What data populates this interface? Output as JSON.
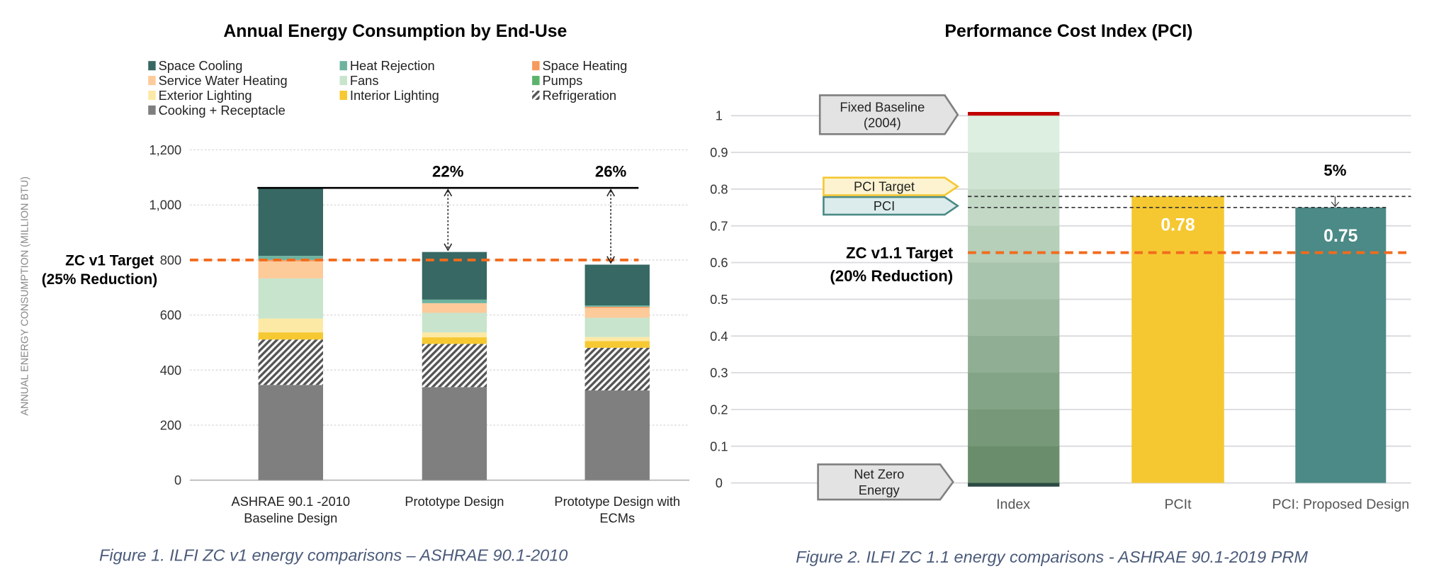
{
  "chart_data": [
    {
      "type": "bar",
      "stacked": true,
      "title": "Annual Energy Consumption by End-Use",
      "ylabel": "ANNUAL ENERGY CONSUMPTION (MILLION BTU)",
      "ylim": [
        0,
        1200
      ],
      "yticks": [
        "0",
        "200",
        "400",
        "600",
        "800",
        "1,000",
        "1,200"
      ],
      "grid": true,
      "legend_placement": "top",
      "categories": [
        [
          "ASHRAE 90.1 -2010",
          "Baseline Design"
        ],
        [
          "Prototype Design"
        ],
        [
          "Prototype Design with",
          "ECMs"
        ]
      ],
      "series": [
        {
          "name": "Cooking + Receptacle",
          "color": "#7f7f7f",
          "values": [
            346,
            338,
            326
          ]
        },
        {
          "name": "Refrigeration",
          "color": "hatch",
          "values": [
            165,
            157,
            155
          ]
        },
        {
          "name": "Interior Lighting",
          "color": "#f6c932",
          "values": [
            26,
            24,
            24
          ]
        },
        {
          "name": "Exterior Lighting",
          "color": "#fde9a6",
          "values": [
            50,
            18,
            15
          ]
        },
        {
          "name": "Fans",
          "color": "#c8e4cc",
          "values": [
            146,
            71,
            70
          ]
        },
        {
          "name": "Service Water Heating",
          "color": "#fdca9a",
          "values": [
            62,
            35,
            36
          ]
        },
        {
          "name": "Space Heating",
          "color": "#f79a5e",
          "values": [
            5,
            0,
            4
          ]
        },
        {
          "name": "Pumps",
          "color": "#5bb36b",
          "values": [
            0,
            0,
            0
          ]
        },
        {
          "name": "Heat Rejection",
          "color": "#6db3a0",
          "values": [
            15,
            13,
            5
          ]
        },
        {
          "name": "Space Cooling",
          "color": "#376863",
          "values": [
            247,
            173,
            148
          ]
        }
      ],
      "legend_order": [
        "Space Cooling",
        "Heat Rejection",
        "Space Heating",
        "Service Water Heating",
        "Fans",
        "Pumps",
        "Exterior Lighting",
        "Interior Lighting",
        "Refrigeration",
        "Cooking + Receptacle"
      ],
      "baseline_total": 1062,
      "target": {
        "value": 800,
        "label": [
          "ZC v1 Target",
          "(25% Reduction)"
        ],
        "color": "#f26b1d"
      },
      "annotations": [
        {
          "category": 1,
          "text": "22%"
        },
        {
          "category": 2,
          "text": "26%"
        }
      ],
      "caption": "Figure 1. ILFI ZC v1 energy comparisons – ASHRAE 90.1-2010"
    },
    {
      "type": "bar",
      "title": "Performance Cost Index (PCI)",
      "ylim": [
        0,
        1
      ],
      "yticks": [
        "0",
        "0.1",
        "0.2",
        "0.3",
        "0.4",
        "0.5",
        "0.6",
        "0.7",
        "0.8",
        "0.9",
        "1"
      ],
      "grid": true,
      "categories": [
        "Index",
        "PCIt",
        "PCI: Proposed Design"
      ],
      "values": [
        1,
        0.78,
        0.75
      ],
      "data_labels": [
        "",
        "0.78",
        "0.75"
      ],
      "colors": {
        "index_top": "#dcefe0",
        "index_bottom": "#6a8e6c",
        "index_cap": "#c00000",
        "index_base": "#2c4a44",
        "pcit": "#f5c832",
        "proposed": "#4b8a86"
      },
      "target": {
        "value": 0.627,
        "label": [
          "ZC v1.1 Target",
          "(20% Reduction)"
        ],
        "color": "#f26b1d"
      },
      "callouts": [
        {
          "lines": [
            "Fixed Baseline",
            "(2004)"
          ],
          "value": 1,
          "fill": "#e3e3e3",
          "stroke": "#7f7f7f"
        },
        {
          "lines": [
            "PCI Target"
          ],
          "value": 0.78,
          "fill": "#fdf3d0",
          "stroke": "#f5c832"
        },
        {
          "lines": [
            "PCI"
          ],
          "value": 0.75,
          "fill": "#dcecec",
          "stroke": "#4b8a86"
        },
        {
          "lines": [
            "Net Zero",
            "Energy"
          ],
          "value": 0,
          "fill": "#e3e3e3",
          "stroke": "#7f7f7f"
        }
      ],
      "annotation": "5%",
      "caption": "Figure 2. ILFI ZC 1.1 energy comparisons - ASHRAE 90.1-2019 PRM"
    }
  ]
}
